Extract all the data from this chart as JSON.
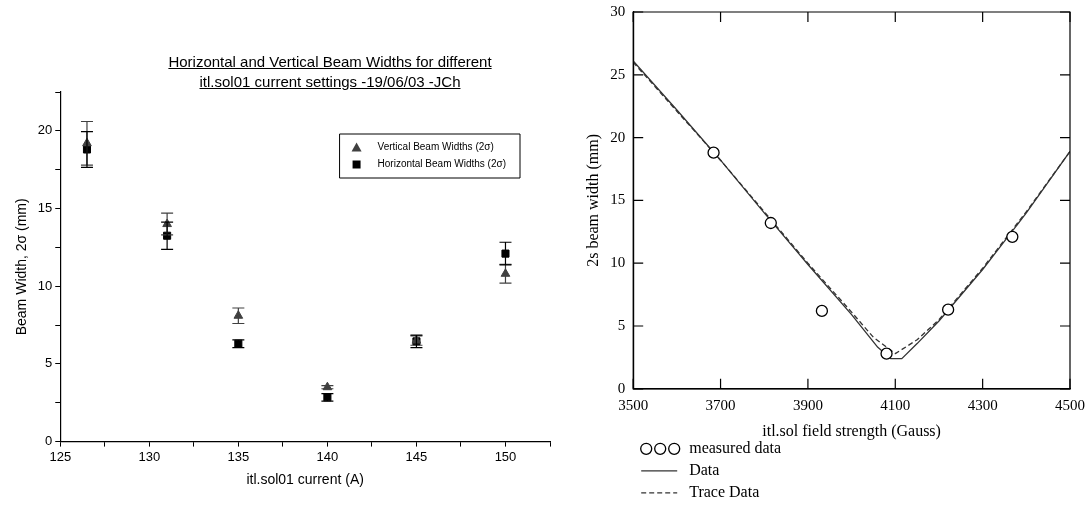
{
  "chart_data": [
    {
      "type": "scatter",
      "title": "Horizontal and Vertical Beam Widths for different itl.sol01 current settings -19/06/03 -JCh",
      "xlabel": "itl.sol01 current (A)",
      "ylabel": "Beam Width, 2σ (mm)",
      "xlim": [
        125,
        152.5
      ],
      "xticks": [
        125,
        {
          "value": 127.5,
          "label": null
        },
        130,
        {
          "value": 132.5,
          "label": null
        },
        135,
        {
          "value": 137.5,
          "label": null
        },
        140,
        {
          "value": 142.5,
          "label": null
        },
        145,
        {
          "value": 147.5,
          "label": null
        },
        150,
        {
          "value": 152.5,
          "label": null
        }
      ],
      "ylim": [
        0,
        22.5
      ],
      "yticks": [
        0,
        {
          "value": 2.5,
          "label": null
        },
        5,
        {
          "value": 7.5,
          "label": null
        },
        10,
        {
          "value": 12.5,
          "label": null
        },
        15,
        {
          "value": 17.5,
          "label": null
        },
        20,
        {
          "value": 22.5,
          "label": null
        }
      ],
      "grid": false,
      "legend": "top right",
      "series": [
        {
          "name": "Vertical Beam Widths (2σ)",
          "color": "#404040",
          "marker": "triangle",
          "x": [
            126.5,
            131,
            135,
            140,
            145,
            150
          ],
          "values": [
            19.2,
            14.0,
            8.1,
            3.5,
            6.5,
            10.8
          ],
          "errors": [
            1.4,
            0.7,
            0.5,
            0.1,
            0.3,
            0.6
          ]
        },
        {
          "name": "Horizontal Beam Widths (2σ)",
          "color": "#000000",
          "marker": "square",
          "x": [
            126.5,
            131,
            135,
            140,
            145,
            150
          ],
          "values": [
            18.8,
            13.25,
            6.3,
            2.85,
            6.45,
            12.1
          ],
          "errors": [
            1.15,
            0.88,
            0.25,
            0.24,
            0.4,
            0.73
          ]
        }
      ]
    },
    {
      "type": "scatter",
      "xlabel": "itl.sol field strength (Gauss)",
      "ylabel": "2s beam width (mm)",
      "xlim": [
        3500,
        4500
      ],
      "xticks": [
        3500,
        3700,
        3900,
        4100,
        4300,
        4500
      ],
      "ylim": [
        0,
        30
      ],
      "yticks": [
        0,
        5,
        10,
        15,
        20,
        25,
        30
      ],
      "grid": false,
      "legend": "bottom",
      "series": [
        {
          "name": "measured data",
          "color": "#000000",
          "marker": "circle",
          "x": [
            3684,
            3815,
            3932,
            4080,
            4221,
            4368
          ],
          "values": [
            18.8,
            13.2,
            6.2,
            2.8,
            6.3,
            12.1
          ]
        },
        {
          "name": "Data",
          "type": "line",
          "color": "#333333",
          "marker": "none",
          "line_style": "solid",
          "x": [
            3500,
            3600,
            3700,
            3800,
            3900,
            4000,
            4060,
            4090,
            4115,
            4150,
            4200,
            4300,
            4400,
            4500
          ],
          "values": [
            26.1,
            22.2,
            18.2,
            14.0,
            9.9,
            5.9,
            3.3,
            2.4,
            2.4,
            3.6,
            5.4,
            9.5,
            14.0,
            18.9
          ]
        },
        {
          "name": "Trace Data",
          "type": "line",
          "color": "#333333",
          "marker": "none",
          "line_style": "dashed",
          "x": [
            3500,
            3700,
            3900,
            4000,
            4050,
            4100,
            4150,
            4200,
            4300,
            4400,
            4500
          ],
          "values": [
            26.0,
            18.2,
            10.0,
            6.1,
            4.1,
            2.8,
            3.9,
            5.5,
            9.6,
            14.1,
            18.9
          ]
        }
      ]
    }
  ]
}
